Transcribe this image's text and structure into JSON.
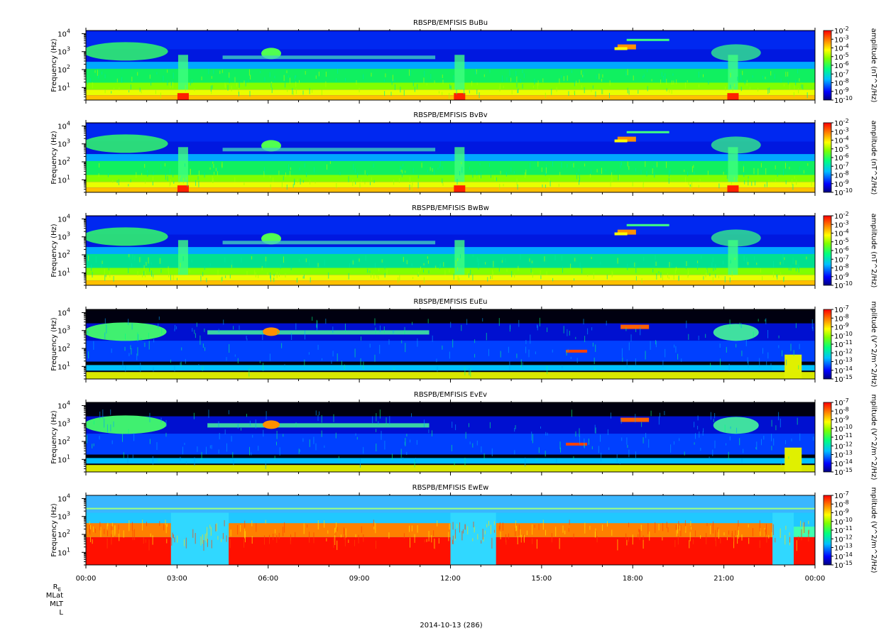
{
  "chart_data": {
    "type": "heatmap",
    "x_tick_labels": [
      "00:00",
      "03:00",
      "06:00",
      "09:00",
      "12:00",
      "15:00",
      "18:00",
      "21:00",
      "00:00"
    ],
    "x_minor_ticks_per_major": 3,
    "x_range_hours": [
      0,
      24
    ],
    "ephemeris_labels": [
      "R",
      "MLat",
      "MLT",
      "L"
    ],
    "ephemeris_subscript": "E",
    "date_label": "2014-10-13 (286)",
    "colorscale": [
      "#00007f",
      "#0000ff",
      "#00bfff",
      "#00ff80",
      "#80ff00",
      "#ffff00",
      "#ff8000",
      "#ff0000"
    ],
    "panels": [
      {
        "title": "RBSPB/EMFISIS  BuBu",
        "ylabel": "Frequency (Hz)",
        "y_scale": "log",
        "y_ticks": [
          {
            "base": "10",
            "exp": "4"
          },
          {
            "base": "10",
            "exp": "3"
          },
          {
            "base": "10",
            "exp": "2"
          },
          {
            "base": "10",
            "exp": "1"
          }
        ],
        "colorbar_label": "amplitude (nT^2/Hz)",
        "colorbar_ticks": [
          "-2",
          "-3",
          "-4",
          "-5",
          "-6",
          "-7",
          "-8",
          "-9",
          "-10"
        ],
        "style": "B"
      },
      {
        "title": "RBSPB/EMFISIS  BvBv",
        "ylabel": "Frequency (Hz)",
        "y_scale": "log",
        "y_ticks": [
          {
            "base": "10",
            "exp": "4"
          },
          {
            "base": "10",
            "exp": "3"
          },
          {
            "base": "10",
            "exp": "2"
          },
          {
            "base": "10",
            "exp": "1"
          }
        ],
        "colorbar_label": "amplitude (nT^2/Hz)",
        "colorbar_ticks": [
          "-2",
          "-3",
          "-4",
          "-5",
          "-6",
          "-7",
          "-8",
          "-9",
          "-10"
        ],
        "style": "B"
      },
      {
        "title": "RBSPB/EMFISIS  BwBw",
        "ylabel": "Frequency (Hz)",
        "y_scale": "log",
        "y_ticks": [
          {
            "base": "10",
            "exp": "4"
          },
          {
            "base": "10",
            "exp": "3"
          },
          {
            "base": "10",
            "exp": "2"
          },
          {
            "base": "10",
            "exp": "1"
          }
        ],
        "colorbar_label": "amplitude (nT^2/Hz)",
        "colorbar_ticks": [
          "-2",
          "-3",
          "-4",
          "-5",
          "-6",
          "-7",
          "-8",
          "-9",
          "-10"
        ],
        "style": "Bw"
      },
      {
        "title": "RBSPB/EMFISIS  EuEu",
        "ylabel": "Frequency (Hz)",
        "y_scale": "log",
        "y_ticks": [
          {
            "base": "10",
            "exp": "4"
          },
          {
            "base": "10",
            "exp": "3"
          },
          {
            "base": "10",
            "exp": "2"
          },
          {
            "base": "10",
            "exp": "1"
          }
        ],
        "colorbar_label": "mplitude (V^2/m^2/Hz)",
        "colorbar_ticks": [
          "-7",
          "-8",
          "-9",
          "-10",
          "-11",
          "-12",
          "-13",
          "-14",
          "-15"
        ],
        "style": "E"
      },
      {
        "title": "RBSPB/EMFISIS  EvEv",
        "ylabel": "Frequency (Hz)",
        "y_scale": "log",
        "y_ticks": [
          {
            "base": "10",
            "exp": "4"
          },
          {
            "base": "10",
            "exp": "3"
          },
          {
            "base": "10",
            "exp": "2"
          },
          {
            "base": "10",
            "exp": "1"
          }
        ],
        "colorbar_label": "mplitude (V^2/m^2/Hz)",
        "colorbar_ticks": [
          "-7",
          "-8",
          "-9",
          "-10",
          "-11",
          "-12",
          "-13",
          "-14",
          "-15"
        ],
        "style": "E"
      },
      {
        "title": "RBSPB/EMFISIS  EwEw",
        "ylabel": "Frequency (Hz)",
        "y_scale": "log",
        "y_ticks": [
          {
            "base": "10",
            "exp": "4"
          },
          {
            "base": "10",
            "exp": "3"
          },
          {
            "base": "10",
            "exp": "2"
          },
          {
            "base": "10",
            "exp": "1"
          }
        ],
        "colorbar_label": "mplitude (V^2/m^2/Hz)",
        "colorbar_ticks": [
          "-7",
          "-8",
          "-9",
          "-10",
          "-11",
          "-12",
          "-13",
          "-14",
          "-15"
        ],
        "style": "Ew"
      }
    ]
  }
}
